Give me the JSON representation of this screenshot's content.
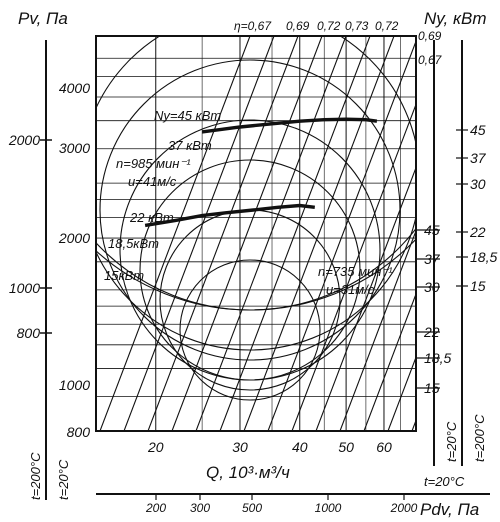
{
  "chart_data": {
    "type": "line",
    "xlabel": "Q, 10³·м³/ч",
    "ylabel_left": "Pv, Па",
    "ylabel_right": "Ny, кВт",
    "x_bottom_label": "Pdv, Па",
    "x_ticks": [
      "20",
      "30",
      "40",
      "50",
      "60"
    ],
    "y_left_inner_ticks": [
      "4000",
      "3000",
      "2000",
      "1000",
      "800"
    ],
    "y_left_outer_ticks": [
      "2000",
      "1000",
      "800"
    ],
    "pdv_ticks": [
      "200",
      "300",
      "500",
      "1000",
      "2000"
    ],
    "right_power_ticks_high": [
      "45",
      "37",
      "30",
      "22",
      "18,5",
      "15"
    ],
    "right_power_ticks_low": [
      "45",
      "37",
      "30",
      "22",
      "18,5",
      "15"
    ],
    "efficiency_labels": [
      "η=0,67",
      "0,69",
      "0,72",
      "0,73",
      "0,72"
    ],
    "efficiency_right_labels": [
      "0,69",
      "0,67"
    ],
    "power_curve_labels": [
      "Ny=45 кВт",
      "37 кВт",
      "22 кВт",
      "18,5кВт",
      "15кВт"
    ],
    "temperature_labels": [
      "t=200°C",
      "t=20°C",
      "t=20°C",
      "t=200°C",
      "t=20°C"
    ],
    "series": [
      {
        "name": "n=985 мин⁻¹",
        "sub": "u=41м/с",
        "x": [
          25,
          30,
          35,
          40,
          45,
          50,
          55,
          58
        ],
        "y": [
          2790,
          2880,
          2940,
          2990,
          3020,
          3030,
          3020,
          2990
        ]
      },
      {
        "name": "n=735 мин⁻¹",
        "sub": "u=31м/с",
        "x": [
          19,
          22,
          25,
          28,
          32,
          36,
          40,
          43
        ],
        "y": [
          1520,
          1570,
          1620,
          1650,
          1680,
          1710,
          1730,
          1710
        ]
      }
    ]
  }
}
